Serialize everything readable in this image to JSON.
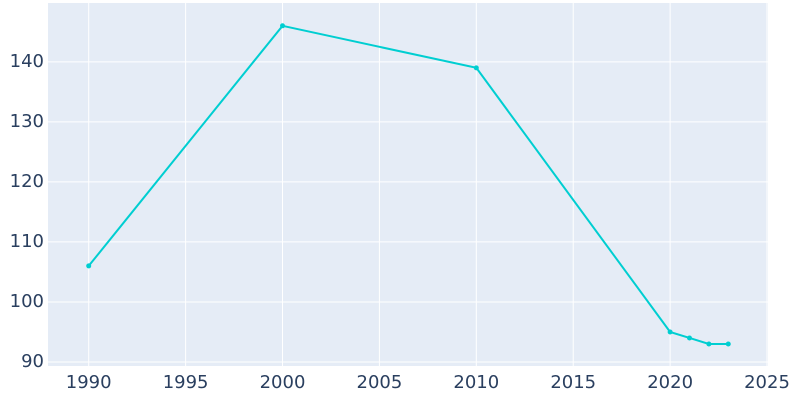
{
  "chart_data": {
    "type": "line",
    "x": [
      1990,
      2000,
      2010,
      2020,
      2021,
      2022,
      2023
    ],
    "series": [
      {
        "color": "#00ced1",
        "values": [
          106,
          146,
          139,
          95,
          94,
          93,
          93
        ]
      }
    ],
    "xlim": [
      1987.9,
      2025.05
    ],
    "xticks": [
      1990,
      1995,
      2000,
      2005,
      2010,
      2015,
      2020,
      2025
    ],
    "ylim": [
      89.33,
      149.8
    ],
    "yticks": [
      90,
      100,
      110,
      120,
      130,
      140
    ],
    "grid": true
  }
}
